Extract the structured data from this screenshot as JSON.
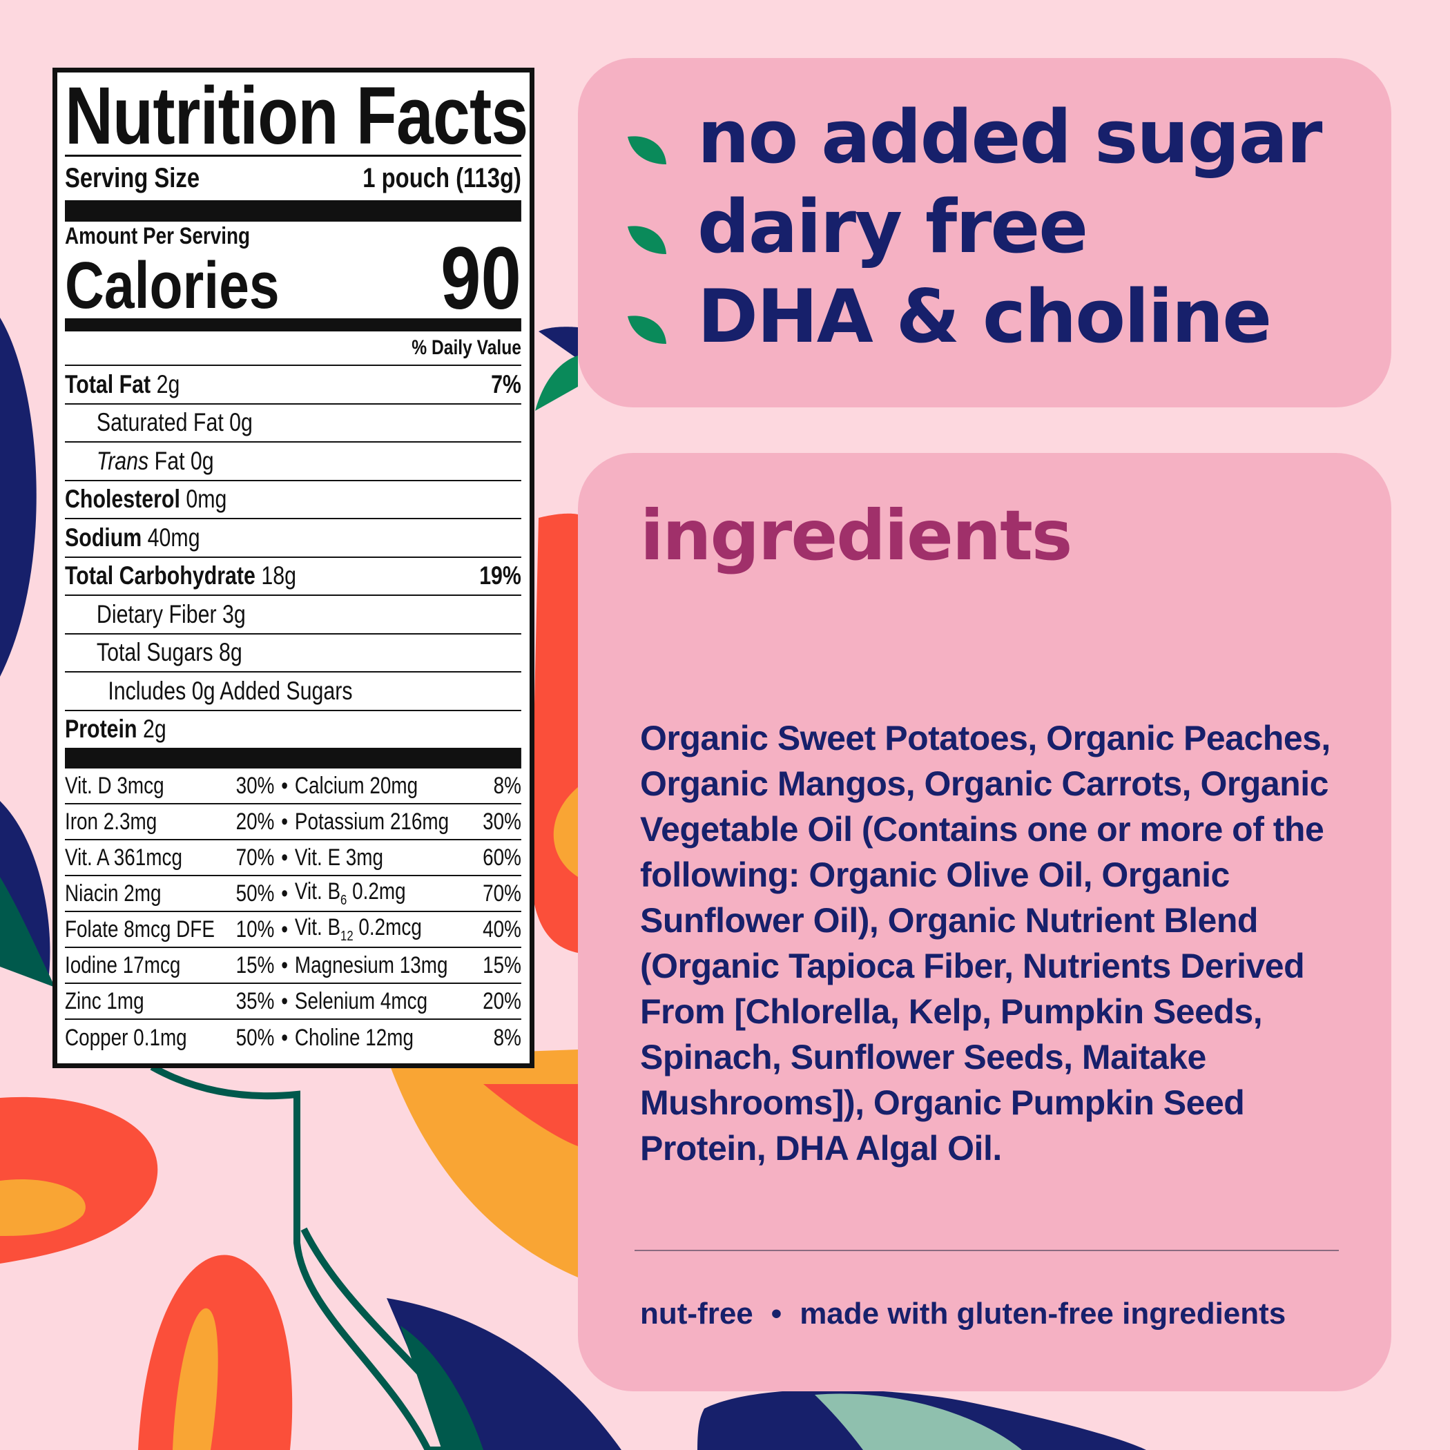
{
  "colors": {
    "background": "#fdd8df",
    "panel": "#f5b1c3",
    "navy": "#17206b",
    "plum": "#a0306a",
    "leaf": "#0a8a5a",
    "red": "#fb4f3a",
    "orange": "#f9a534"
  },
  "label": {
    "title": "Nutrition Facts",
    "serving_label": "Serving Size",
    "serving_value": "1 pouch (113g)",
    "amount_per_serving": "Amount Per Serving",
    "calories_label": "Calories",
    "calories_value": "90",
    "daily_value_header": "% Daily Value",
    "nutrients": [
      {
        "name": "Total Fat",
        "amount": "2g",
        "dv": "7%",
        "bold": true,
        "indent": 0
      },
      {
        "name": "Saturated Fat",
        "amount": "0g",
        "dv": "",
        "bold": false,
        "indent": 1
      },
      {
        "name": "Trans",
        "amount": "Fat 0g",
        "dv": "",
        "bold": false,
        "indent": 1,
        "italic": true
      },
      {
        "name": "Cholesterol",
        "amount": "0mg",
        "dv": "",
        "bold": true,
        "indent": 0
      },
      {
        "name": "Sodium",
        "amount": "40mg",
        "dv": "",
        "bold": true,
        "indent": 0
      },
      {
        "name": "Total Carbohydrate",
        "amount": "18g",
        "dv": "19%",
        "bold": true,
        "indent": 0
      },
      {
        "name": "Dietary Fiber",
        "amount": "3g",
        "dv": "",
        "bold": false,
        "indent": 1
      },
      {
        "name": "Total Sugars",
        "amount": "8g",
        "dv": "",
        "bold": false,
        "indent": 1
      },
      {
        "name": "Includes 0g Added Sugars",
        "amount": "",
        "dv": "",
        "bold": false,
        "indent": 2
      },
      {
        "name": "Protein",
        "amount": "2g",
        "dv": "",
        "bold": true,
        "indent": 0
      }
    ],
    "vitamins": [
      {
        "l": "Vit. D 3mcg",
        "lp": "30%",
        "r": "Calcium 20mg",
        "rs": "",
        "rpost": "",
        "rp": "8%"
      },
      {
        "l": "Iron 2.3mg",
        "lp": "20%",
        "r": "Potassium 216mg",
        "rs": "",
        "rpost": "",
        "rp": "30%"
      },
      {
        "l": "Vit. A 361mcg",
        "lp": "70%",
        "r": "Vit. E 3mg",
        "rs": "",
        "rpost": "",
        "rp": "60%"
      },
      {
        "l": "Niacin 2mg",
        "lp": "50%",
        "r": "Vit. B",
        "rs": "6",
        "rpost": " 0.2mg",
        "rp": "70%"
      },
      {
        "l": "Folate 8mcg DFE",
        "lp": "10%",
        "r": "Vit. B",
        "rs": "12",
        "rpost": " 0.2mcg",
        "rp": "40%"
      },
      {
        "l": "Iodine 17mcg",
        "lp": "15%",
        "r": "Magnesium 13mg",
        "rs": "",
        "rpost": "",
        "rp": "15%"
      },
      {
        "l": "Zinc 1mg",
        "lp": "35%",
        "r": "Selenium 4mcg",
        "rs": "",
        "rpost": "",
        "rp": "20%"
      },
      {
        "l": "Copper 0.1mg",
        "lp": "50%",
        "r": "Choline 12mg",
        "rs": "",
        "rpost": "",
        "rp": "8%"
      }
    ],
    "bullet": "•"
  },
  "claims": [
    {
      "text": "no added sugar",
      "icon": "leaf-icon"
    },
    {
      "text": "dairy free",
      "icon": "leaf-icon"
    },
    {
      "text": "DHA & choline",
      "icon": "leaf-icon"
    }
  ],
  "ingredients": {
    "heading": "ingredients",
    "text": "Organic Sweet Potatoes, Organic Peaches, Organic Mangos, Organic Carrots, Organic Vegetable Oil (Contains one or more of the following: Organic Olive Oil, Organic Sunflower Oil), Organic Nutrient Blend (Organic Tapioca Fiber, Nutrients Derived From [Chlorella, Kelp, Pumpkin Seeds, Spinach, Sunflower Seeds, Maitake Mushrooms]), Organic Pumpkin Seed Protein, DHA Algal Oil.",
    "footer_left": "nut-free",
    "footer_sep": "•",
    "footer_right": "made with gluten-free ingredients"
  }
}
